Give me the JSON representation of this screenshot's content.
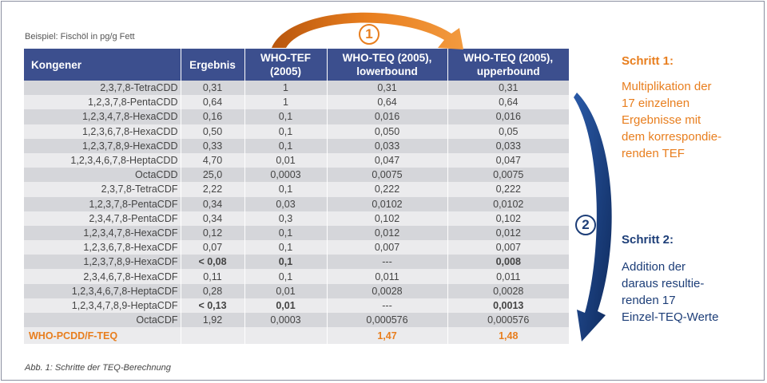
{
  "caption_top": "Beispiel: Fischöl in pg/g Fett",
  "caption_bottom": "Abb. 1: Schritte der TEQ-Berechnung",
  "table": {
    "headers": [
      [
        "Kongener",
        ""
      ],
      [
        "Ergebnis",
        ""
      ],
      [
        "WHO-TEF",
        "(2005)"
      ],
      [
        "WHO-TEQ (2005),",
        "lowerbound"
      ],
      [
        "WHO-TEQ (2005),",
        "upperbound"
      ]
    ],
    "rows": [
      [
        "2,3,7,8-TetraCDD",
        "0,31",
        "1",
        "0,31",
        "0,31"
      ],
      [
        "1,2,3,7,8-PentaCDD",
        "0,64",
        "1",
        "0,64",
        "0,64"
      ],
      [
        "1,2,3,4,7,8-HexaCDD",
        "0,16",
        "0,1",
        "0,016",
        "0,016"
      ],
      [
        "1,2,3,6,7,8-HexaCDD",
        "0,50",
        "0,1",
        "0,050",
        "0,05"
      ],
      [
        "1,2,3,7,8,9-HexaCDD",
        "0,33",
        "0,1",
        "0,033",
        "0,033"
      ],
      [
        "1,2,3,4,6,7,8-HeptaCDD",
        "4,70",
        "0,01",
        "0,047",
        "0,047"
      ],
      [
        "OctaCDD",
        "25,0",
        "0,0003",
        "0,0075",
        "0,0075"
      ],
      [
        "2,3,7,8-TetraCDF",
        "2,22",
        "0,1",
        "0,222",
        "0,222"
      ],
      [
        "1,2,3,7,8-PentaCDF",
        "0,34",
        "0,03",
        "0,0102",
        "0,0102"
      ],
      [
        "2,3,4,7,8-PentaCDF",
        "0,34",
        "0,3",
        "0,102",
        "0,102"
      ],
      [
        "1,2,3,4,7,8-HexaCDF",
        "0,12",
        "0,1",
        "0,012",
        "0,012"
      ],
      [
        "1,2,3,6,7,8-HexaCDF",
        "0,07",
        "0,1",
        "0,007",
        "0,007"
      ],
      [
        "1,2,3,7,8,9-HexaCDF",
        "< 0,08",
        "0,1",
        "---",
        "0,008"
      ],
      [
        "2,3,4,6,7,8-HexaCDF",
        "0,11",
        "0,1",
        "0,011",
        "0,011"
      ],
      [
        "1,2,3,4,6,7,8-HeptaCDF",
        "0,28",
        "0,01",
        "0,0028",
        "0,0028"
      ],
      [
        "1,2,3,4,7,8,9-HeptaCDF",
        "< 0,13",
        "0,01",
        "---",
        "0,0013"
      ],
      [
        "OctaCDF",
        "1,92",
        "0,0003",
        "0,000576",
        "0,000576"
      ]
    ],
    "bold_rows": [
      12,
      15
    ],
    "total": [
      "WHO-PCDD/F-TEQ",
      "",
      "",
      "1,47",
      "1,48"
    ]
  },
  "step1": {
    "badge": "1",
    "title": "Schritt 1:",
    "lines": [
      "Multiplikation der",
      "17 einzelnen",
      "Ergebnisse mit",
      "dem korrespondie-",
      "renden TEF"
    ]
  },
  "step2": {
    "badge": "2",
    "title": "Schritt 2:",
    "lines": [
      "Addition der",
      "daraus resultie-",
      "renden 17",
      "Einzel-TEQ-Werte"
    ]
  },
  "colors": {
    "header_bg": "#3c4f8e",
    "orange": "#e87e1e",
    "navy": "#1d3e78",
    "row_dark": "#d5d6da",
    "row_light": "#ebebed"
  }
}
